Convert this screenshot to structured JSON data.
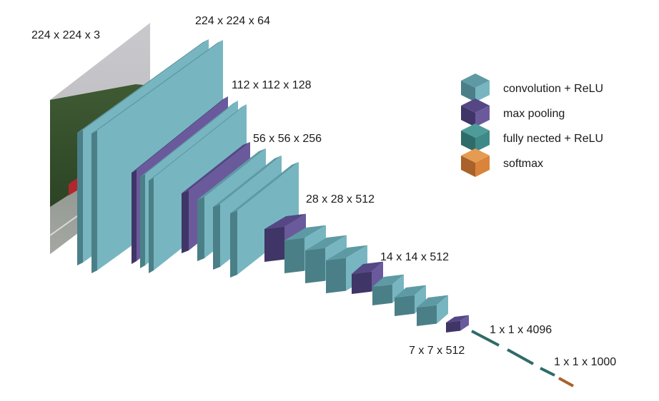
{
  "colors": {
    "conv_front": "#77b6c0",
    "conv_top": "#5e9aa4",
    "conv_side": "#4b7f87",
    "pool_front": "#6a5a9c",
    "pool_top": "#544784",
    "pool_side": "#3f3566",
    "fc_front": "#3f8a88",
    "fc_top": "#4d9c9a",
    "fc_side": "#2f6b69",
    "softmax_front": "#d9843a",
    "softmax_top": "#e69b52",
    "softmax_side": "#a9622a"
  },
  "labels": {
    "input": "224 x 224 x 3",
    "block1": "224 x 224 x 64",
    "block2": "112 x 112 x 128",
    "block3": "56 x 56 x 256",
    "block4": "28 x 28 x 512",
    "block5": "14 x 14 x 512",
    "pool5": "7 x 7 x 512",
    "fc": "1 x 1 x 4096",
    "output": "1 x 1 x 1000"
  },
  "legend": [
    {
      "label": "convolution + ReLU",
      "kind": "conv",
      "icon": "conv-cube-icon"
    },
    {
      "label": "max pooling",
      "kind": "pool",
      "icon": "pool-cube-icon"
    },
    {
      "label": "fully nected + ReLU",
      "kind": "fc",
      "icon": "fc-cube-icon"
    },
    {
      "label": "softmax",
      "kind": "softmax",
      "icon": "softmax-cube-icon"
    }
  ]
}
